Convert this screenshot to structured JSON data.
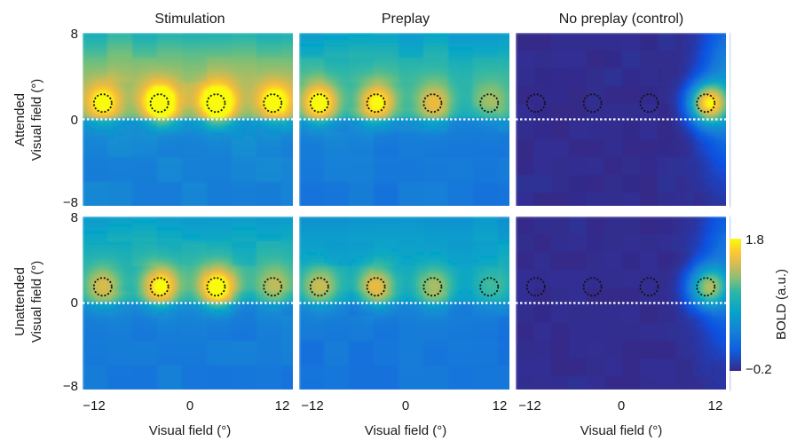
{
  "chart_data": {
    "type": "heatmap",
    "column_titles": [
      "Stimulation",
      "Preplay",
      "No preplay (control)"
    ],
    "row_labels": [
      "Attended",
      "Unattended"
    ],
    "ylabel": "Visual field (°)",
    "xlabel": "Visual field (°)",
    "x_ticks": [
      "−12",
      "0",
      "12"
    ],
    "y_ticks": [
      "8",
      "0",
      "−8"
    ],
    "xlim": [
      -13,
      13
    ],
    "ylim": [
      -8,
      8
    ],
    "stimulus_locations": {
      "x": [
        -10.5,
        -3.5,
        3.5,
        10.5
      ],
      "y": 1.5,
      "radius": 1.1
    },
    "zero_line_y": 0,
    "colorbar": {
      "label": "BOLD (a.u.)",
      "min": -0.2,
      "max": 1.8,
      "min_label": "−0.2",
      "max_label": "1.8",
      "colormap": "parula"
    },
    "panels": [
      {
        "row": "Attended",
        "column": "Stimulation",
        "peak_amplitudes": [
          1.35,
          1.75,
          1.75,
          1.4
        ],
        "baseline": 0.45,
        "upper_field": 0.75,
        "edge_blob": 0
      },
      {
        "row": "Attended",
        "column": "Preplay",
        "peak_amplitudes": [
          1.55,
          1.45,
          1.05,
          0.75
        ],
        "baseline": 0.35,
        "upper_field": 0.55,
        "edge_blob": 0
      },
      {
        "row": "Attended",
        "column": "No preplay (control)",
        "peak_amplitudes": [
          0,
          0,
          0,
          1.7
        ],
        "baseline": -0.2,
        "upper_field": 0,
        "edge_blob": 0.6
      },
      {
        "row": "Unattended",
        "column": "Stimulation",
        "peak_amplitudes": [
          1.05,
          1.5,
          1.65,
          0.85
        ],
        "baseline": 0.35,
        "upper_field": 0.5,
        "edge_blob": 0
      },
      {
        "row": "Unattended",
        "column": "Preplay",
        "peak_amplitudes": [
          1.0,
          1.2,
          0.95,
          0.6
        ],
        "baseline": 0.3,
        "upper_field": 0.4,
        "edge_blob": 0
      },
      {
        "row": "Unattended",
        "column": "No preplay (control)",
        "peak_amplitudes": [
          0,
          0,
          0,
          1.25
        ],
        "baseline": -0.2,
        "upper_field": 0,
        "edge_blob": 0.45
      }
    ]
  }
}
